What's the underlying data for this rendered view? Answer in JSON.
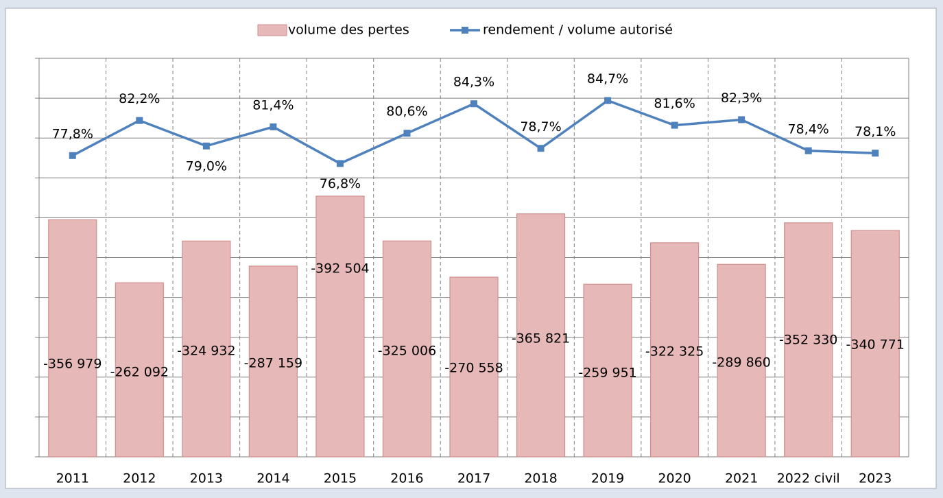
{
  "chart_data": {
    "type": "bar_line",
    "categories": [
      "2011",
      "2012",
      "2013",
      "2014",
      "2015",
      "2016",
      "2017",
      "2018",
      "2019",
      "2020",
      "2021",
      "2022 civil",
      "2023"
    ],
    "series": [
      {
        "name": "volume des pertes",
        "type": "bar",
        "color": "#e6b8b7",
        "values": [
          -356979,
          -262092,
          -324932,
          -287159,
          -392504,
          -325006,
          -270558,
          -365821,
          -259951,
          -322325,
          -289860,
          -352330,
          -340771
        ],
        "value_labels": [
          "-356 979",
          "-262 092",
          "-324 932",
          "-287 159",
          "-392 504",
          "-325 006",
          "-270 558",
          "-365 821",
          "-259 951",
          "-322 325",
          "-289 860",
          "-352 330",
          "-340 771"
        ]
      },
      {
        "name": "rendement / volume autorisé",
        "type": "line",
        "axis": "y2",
        "color": "#4f81bd",
        "values": [
          77.8,
          82.2,
          79.0,
          81.4,
          76.8,
          80.6,
          84.3,
          78.7,
          84.7,
          81.6,
          82.3,
          78.4,
          78.1
        ],
        "value_labels": [
          "77,8%",
          "82,2%",
          "79,0%",
          "81,4%",
          "76,8%",
          "80,6%",
          "84,3%",
          "78,7%",
          "84,7%",
          "81,6%",
          "82,3%",
          "78,4%",
          "78,1%"
        ]
      }
    ],
    "ylim": [
      0,
      -600000
    ],
    "yticks": [
      0,
      -60000,
      -120000,
      -180000,
      -240000,
      -300000,
      -360000,
      -420000,
      -480000,
      -540000,
      -600000
    ],
    "y2lim": [
      40,
      90
    ],
    "grid": true,
    "legend": "top"
  }
}
